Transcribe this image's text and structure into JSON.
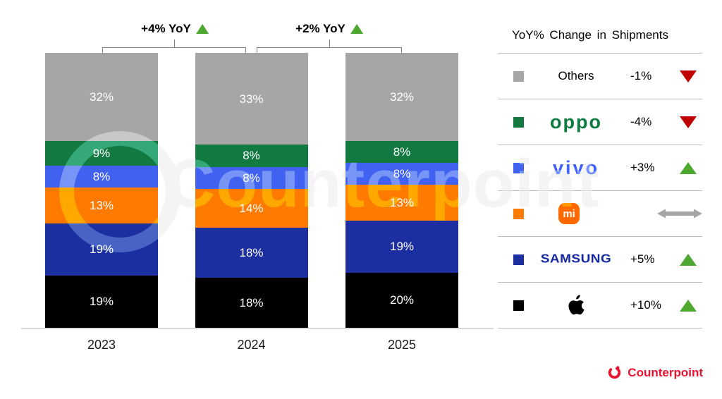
{
  "chart_data": {
    "type": "bar",
    "stacked": true,
    "categories": [
      "2023",
      "2024",
      "2025"
    ],
    "series": [
      {
        "name": "Others",
        "color": "#a6a6a6",
        "values": [
          32,
          33,
          32
        ]
      },
      {
        "name": "OPPO",
        "color": "#127a40",
        "values": [
          9,
          8,
          8
        ]
      },
      {
        "name": "vivo",
        "color": "#4161f1",
        "values": [
          8,
          8,
          8
        ]
      },
      {
        "name": "Xiaomi",
        "color": "#ff7a00",
        "values": [
          13,
          14,
          13
        ]
      },
      {
        "name": "Samsung",
        "color": "#1b2fa0",
        "values": [
          19,
          18,
          19
        ]
      },
      {
        "name": "Apple",
        "color": "#000000",
        "values": [
          19,
          18,
          20
        ]
      }
    ],
    "value_suffix": "%",
    "ylim": [
      0,
      100
    ],
    "grid": false,
    "legend_position": "right",
    "yoy_growth": [
      {
        "label": "+4% YoY",
        "direction": "up",
        "between": [
          "2023",
          "2024"
        ]
      },
      {
        "label": "+2% YoY",
        "direction": "up",
        "between": [
          "2024",
          "2025"
        ]
      }
    ]
  },
  "legend": {
    "title": "YoY% Change in Shipments",
    "rows": [
      {
        "brand": "Others",
        "change": "-1%",
        "direction": "down"
      },
      {
        "brand": "OPPO",
        "change": "-4%",
        "direction": "down"
      },
      {
        "brand": "vivo",
        "change": "+3%",
        "direction": "up"
      },
      {
        "brand": "Xiaomi",
        "change": "",
        "direction": "flat"
      },
      {
        "brand": "Samsung",
        "change": "+5%",
        "direction": "up"
      },
      {
        "brand": "Apple",
        "change": "+10%",
        "direction": "up"
      }
    ]
  },
  "watermark": {
    "text": "Counterpoint"
  },
  "footer": {
    "brand": "Counterpoint"
  },
  "colors": {
    "up": "#4ea72e",
    "down": "#c00000",
    "flat": "#a6a6a6",
    "axis": "#d9d9d9",
    "bracket": "#7f7f7f",
    "separator": "#bfbfbf",
    "brand_red": "#e8132f",
    "oppo": "#0b7a40",
    "vivo": "#415fff",
    "samsung": "#1428a0",
    "xiaomi": "#ff6900"
  }
}
